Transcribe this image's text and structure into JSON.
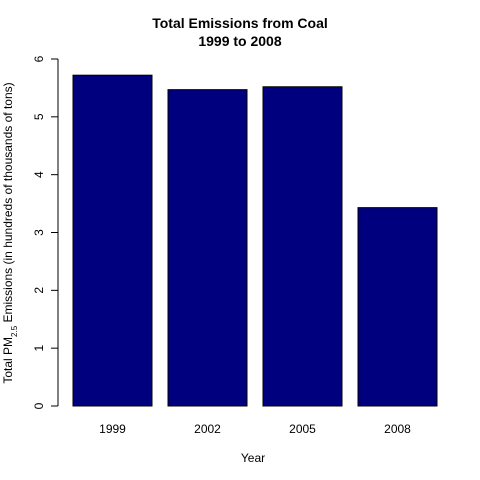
{
  "chart_data": {
    "type": "bar",
    "title": "Total Emissions from Coal",
    "subtitle": "1999 to 2008",
    "xlabel": "Year",
    "ylabel_prefix": "Total PM",
    "ylabel_subscript": "2.5",
    "ylabel_suffix": " Emissions (in hundreds of thousands of tons)",
    "categories": [
      "1999",
      "2002",
      "2005",
      "2008"
    ],
    "values": [
      5.72,
      5.47,
      5.52,
      3.43
    ],
    "ylim": [
      0,
      6
    ],
    "yticks": [
      "0",
      "1",
      "2",
      "3",
      "4",
      "5",
      "6"
    ],
    "bar_color": "#00007f",
    "grid": false
  }
}
